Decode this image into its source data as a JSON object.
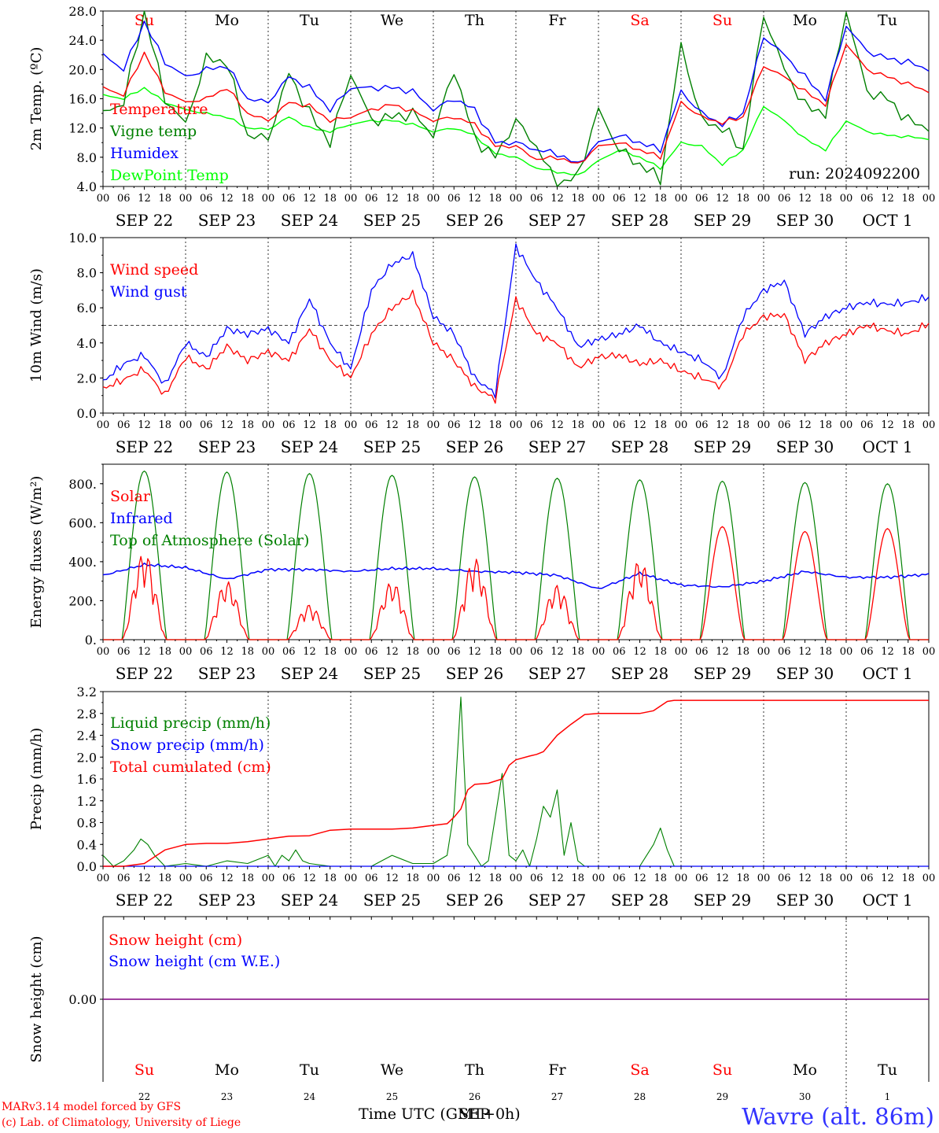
{
  "chart_data": [
    {
      "type": "line",
      "ylabel": "2m Temp. (ºC)",
      "ylim": [
        4,
        28
      ],
      "yticks": [
        "4.0",
        "8.0",
        "12.0",
        "16.0",
        "20.0",
        "24.0",
        "28.0"
      ],
      "ytick_values": [
        4,
        8,
        12,
        16,
        20,
        24,
        28
      ],
      "days_top": [
        "Su",
        "Mo",
        "Tu",
        "We",
        "Th",
        "Fr",
        "Sa",
        "Su",
        "Mo",
        "Tu"
      ],
      "annotation": "run: 2024092200",
      "legend": [
        "Temperature",
        "Vigne temp",
        "Humidex",
        "DewPoint Temp"
      ],
      "x_hours": [
        0,
        6,
        12,
        18,
        24,
        30,
        36,
        42,
        48,
        54,
        60,
        66,
        72,
        78,
        84,
        90,
        96,
        102,
        108,
        114,
        120,
        126,
        132,
        138,
        144,
        150,
        156,
        162,
        168,
        174,
        180,
        186,
        192,
        198,
        204,
        210,
        216,
        222,
        228,
        234,
        240
      ],
      "series": [
        {
          "name": "Temperature",
          "color": "#ff0000",
          "values": [
            17.5,
            16.5,
            22.3,
            17.0,
            15.5,
            16.0,
            17.5,
            14.0,
            13.0,
            15.5,
            15.0,
            13.0,
            13.5,
            14.5,
            15.2,
            14.3,
            13.0,
            13.5,
            12.5,
            9.5,
            9.5,
            7.7,
            8.0,
            7.0,
            9.5,
            10.0,
            9.0,
            8.0,
            15.5,
            13.5,
            12.7,
            13.5,
            20.5,
            19.0,
            17.0,
            15.2,
            23.5,
            20.0,
            19.0,
            18.0,
            17.0
          ]
        },
        {
          "name": "Vigne temp",
          "color": "#008000",
          "values": [
            14.0,
            15.5,
            28.0,
            16.0,
            12.5,
            21.5,
            21.0,
            11.0,
            10.5,
            19.5,
            14.0,
            10.0,
            19.5,
            13.0,
            13.5,
            14.0,
            11.0,
            20.0,
            10.5,
            8.0,
            13.0,
            9.5,
            4.0,
            5.5,
            14.5,
            9.0,
            7.0,
            5.0,
            23.3,
            13.0,
            12.0,
            9.0,
            27.5,
            20.0,
            15.0,
            14.0,
            28.0,
            17.0,
            16.0,
            13.0,
            12.0
          ]
        },
        {
          "name": "Humidex",
          "color": "#0000ff",
          "values": [
            22.0,
            20.0,
            26.5,
            21.0,
            19.0,
            20.0,
            20.5,
            16.0,
            15.5,
            19.0,
            17.5,
            14.5,
            17.5,
            17.5,
            17.5,
            17.0,
            14.5,
            16.0,
            14.5,
            10.0,
            10.0,
            9.0,
            8.5,
            7.0,
            10.0,
            11.0,
            10.0,
            9.0,
            17.0,
            14.0,
            12.5,
            14.0,
            24.5,
            22.0,
            19.0,
            16.0,
            26.0,
            22.5,
            21.5,
            21.0,
            20.0
          ]
        },
        {
          "name": "DewPoint Temp",
          "color": "#00ff00",
          "values": [
            16.5,
            16.0,
            17.5,
            15.5,
            14.5,
            14.0,
            13.5,
            12.0,
            11.8,
            13.5,
            12.0,
            11.5,
            12.5,
            13.0,
            13.0,
            12.5,
            11.5,
            12.0,
            11.0,
            8.5,
            8.0,
            6.5,
            6.0,
            5.5,
            7.5,
            9.0,
            8.0,
            6.5,
            10.0,
            9.5,
            7.0,
            9.0,
            15.0,
            13.0,
            10.5,
            9.0,
            13.0,
            11.5,
            11.0,
            10.8,
            10.5
          ]
        }
      ]
    },
    {
      "type": "line",
      "ylabel": "10m Wind (m/s)",
      "ylim": [
        0,
        10
      ],
      "yticks": [
        "0.0",
        "2.0",
        "4.0",
        "6.0",
        "8.0",
        "10.0"
      ],
      "ytick_values": [
        0,
        2,
        4,
        6,
        8,
        10
      ],
      "reference_line": 5.0,
      "legend": [
        "Wind speed",
        "Wind gust"
      ],
      "x_hours": [
        0,
        6,
        12,
        18,
        24,
        30,
        36,
        42,
        48,
        54,
        60,
        66,
        72,
        78,
        84,
        90,
        96,
        102,
        108,
        114,
        120,
        126,
        132,
        138,
        144,
        150,
        156,
        162,
        168,
        174,
        180,
        186,
        192,
        198,
        204,
        210,
        216,
        222,
        228,
        234,
        240
      ],
      "series": [
        {
          "name": "Wind speed",
          "color": "#ff0000",
          "values": [
            1.4,
            1.9,
            2.5,
            1.0,
            3.2,
            2.5,
            3.8,
            3.0,
            3.5,
            3.0,
            4.8,
            3.0,
            2.0,
            4.5,
            6.0,
            6.8,
            4.0,
            3.0,
            1.5,
            0.8,
            6.5,
            4.5,
            4.0,
            2.6,
            3.2,
            3.3,
            2.8,
            3.0,
            2.4,
            2.0,
            1.5,
            4.5,
            5.5,
            5.6,
            3.0,
            4.0,
            4.5,
            5.0,
            4.7,
            4.5,
            5.1
          ]
        },
        {
          "name": "Wind gust",
          "color": "#0000ff",
          "values": [
            1.8,
            2.8,
            3.3,
            1.6,
            4.0,
            3.2,
            4.8,
            4.5,
            4.8,
            4.0,
            6.5,
            4.0,
            2.5,
            7.0,
            8.5,
            9.0,
            5.5,
            4.5,
            2.0,
            1.1,
            9.5,
            7.5,
            6.0,
            3.8,
            4.2,
            4.5,
            5.0,
            4.0,
            3.5,
            3.0,
            2.0,
            5.5,
            7.0,
            7.5,
            4.5,
            5.5,
            6.0,
            6.3,
            6.2,
            6.3,
            6.6
          ]
        }
      ]
    },
    {
      "type": "line",
      "ylabel": "Energy fluxes (W/m²)",
      "ylim": [
        0,
        900
      ],
      "yticks": [
        "0.",
        "200.",
        "400.",
        "600.",
        "800."
      ],
      "ytick_values": [
        0,
        200,
        400,
        600,
        800
      ],
      "legend": [
        "Solar",
        "Infrared",
        "Top of Atmosphere (Solar)"
      ],
      "series": [
        {
          "name": "Solar",
          "color": "#ff0000",
          "day_peaks": [
            450,
            300,
            180,
            300,
            420,
            280,
            410,
            580,
            555,
            570
          ]
        },
        {
          "name": "Infrared",
          "color": "#0000ff",
          "x_hours": [
            0,
            12,
            24,
            36,
            48,
            60,
            72,
            84,
            96,
            108,
            120,
            132,
            144,
            156,
            168,
            180,
            192,
            204,
            216,
            228,
            240
          ],
          "values": [
            330,
            385,
            370,
            310,
            360,
            360,
            350,
            365,
            365,
            350,
            345,
            330,
            260,
            340,
            280,
            270,
            300,
            350,
            320,
            320,
            335
          ]
        },
        {
          "name": "Top of Atmosphere (Solar)",
          "color": "#008000",
          "day_peaks": [
            865,
            860,
            852,
            843,
            835,
            828,
            820,
            813,
            806,
            800
          ]
        }
      ]
    },
    {
      "type": "line",
      "ylabel": "Precip (mm/h)",
      "ylim": [
        0,
        3.2
      ],
      "yticks": [
        "0.0",
        "0.4",
        "0.8",
        "1.2",
        "1.6",
        "2.0",
        "2.4",
        "2.8",
        "3.2"
      ],
      "ytick_values": [
        0,
        0.4,
        0.8,
        1.2,
        1.6,
        2.0,
        2.4,
        2.8,
        3.2
      ],
      "legend": [
        "Liquid precip (mm/h)",
        "Snow precip (mm/h)",
        "Total cumulated (cm)"
      ],
      "series": [
        {
          "name": "Liquid precip (mm/h)",
          "color": "#008000",
          "x_hours": [
            0,
            3,
            6,
            9,
            11,
            13,
            15,
            18,
            24,
            30,
            36,
            42,
            48,
            50,
            52,
            54,
            56,
            58,
            60,
            66,
            72,
            78,
            84,
            90,
            96,
            100,
            102,
            104,
            106,
            108,
            110,
            112,
            116,
            118,
            120,
            122,
            124,
            126,
            128,
            130,
            132,
            134,
            136,
            138,
            140,
            144,
            150,
            156,
            158,
            160,
            162,
            164,
            166,
            168,
            174,
            180,
            186,
            192,
            198,
            204,
            210,
            216,
            222,
            228,
            234,
            240
          ],
          "values": [
            0.2,
            0.0,
            0.1,
            0.3,
            0.5,
            0.4,
            0.2,
            0.0,
            0.05,
            0.0,
            0.1,
            0.05,
            0.2,
            0.0,
            0.2,
            0.1,
            0.3,
            0.1,
            0.05,
            0.0,
            0.0,
            0.0,
            0.2,
            0.05,
            0.05,
            0.2,
            1.0,
            3.1,
            0.4,
            0.2,
            0.0,
            0.1,
            1.7,
            0.2,
            0.1,
            0.3,
            0.0,
            0.5,
            1.1,
            0.9,
            1.4,
            0.2,
            0.8,
            0.1,
            0.0,
            0.0,
            0.0,
            0.0,
            0.2,
            0.4,
            0.7,
            0.3,
            0.0,
            0.0,
            0.0,
            0.0,
            0.0,
            0.0,
            0.0,
            0.0,
            0.0,
            0.0,
            0.0,
            0.0,
            0.0,
            0.0
          ]
        },
        {
          "name": "Snow precip (mm/h)",
          "color": "#0000ff",
          "x_hours": [
            0,
            240
          ],
          "values": [
            0,
            0
          ]
        },
        {
          "name": "Total cumulated (cm)",
          "color": "#ff0000",
          "x_hours": [
            0,
            6,
            12,
            18,
            24,
            30,
            36,
            42,
            48,
            54,
            60,
            66,
            72,
            78,
            84,
            90,
            96,
            100,
            102,
            104,
            106,
            108,
            112,
            116,
            118,
            120,
            124,
            126,
            128,
            132,
            136,
            140,
            144,
            150,
            156,
            160,
            164,
            166,
            168,
            174,
            180,
            186,
            192,
            198,
            204,
            210,
            216,
            222,
            228,
            234,
            240
          ],
          "values": [
            0,
            0.0,
            0.05,
            0.3,
            0.4,
            0.42,
            0.42,
            0.45,
            0.5,
            0.55,
            0.56,
            0.66,
            0.68,
            0.68,
            0.68,
            0.7,
            0.75,
            0.78,
            0.9,
            1.05,
            1.4,
            1.5,
            1.52,
            1.6,
            1.85,
            1.95,
            2.02,
            2.05,
            2.1,
            2.4,
            2.6,
            2.78,
            2.8,
            2.8,
            2.8,
            2.85,
            3.02,
            3.04,
            3.04,
            3.04,
            3.04,
            3.04,
            3.04,
            3.04,
            3.04,
            3.04,
            3.04,
            3.04,
            3.04,
            3.04,
            3.04
          ]
        }
      ]
    },
    {
      "type": "line",
      "ylabel": "Snow height (cm)",
      "yticks": [
        "0.00"
      ],
      "ytick_values": [
        0
      ],
      "legend": [
        "Snow height (cm)",
        "Snow height (cm W.E.)"
      ],
      "series": [
        {
          "name": "Snow height (cm)",
          "color": "#ff0000",
          "values": [
            0,
            0
          ]
        },
        {
          "name": "Snow height (cm W.E.)",
          "color": "#0000ff",
          "values": [
            0,
            0
          ]
        }
      ],
      "days_bottom": [
        "Su",
        "Mo",
        "Tu",
        "We",
        "Th",
        "Fr",
        "Sa",
        "Su",
        "Mo",
        "Tu"
      ],
      "daynums": [
        "22",
        "23",
        "24",
        "25",
        "26",
        "27",
        "28",
        "29",
        "30",
        "1"
      ]
    }
  ],
  "axis": {
    "hour_labels": [
      "00",
      "06",
      "12",
      "18"
    ],
    "end_label": "00",
    "date_labels": [
      "SEP 22",
      "SEP 23",
      "SEP 24",
      "SEP 25",
      "SEP 26",
      "SEP 27",
      "SEP 28",
      "SEP 29",
      "SEP 30",
      "OCT  1"
    ],
    "weekend_days": [
      0,
      6,
      7
    ],
    "xlabel": "Time UTC (GMT+0h)",
    "xlabel_overprint": "SEP"
  },
  "footer": {
    "credit1": "MARv3.14 model forced by GFS",
    "credit2": "(c) Lab. of Climatology, University of Liege",
    "location": "Wavre (alt. 86m)"
  },
  "colors": {
    "red": "#ff0000",
    "green": "#008000",
    "blue": "#0000ff",
    "lime": "#00ff00",
    "purple": "#800080"
  }
}
